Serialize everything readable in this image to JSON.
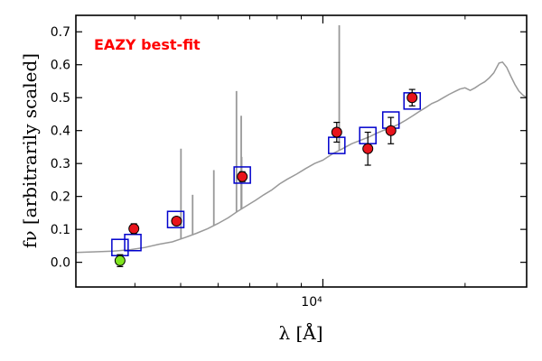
{
  "chart_data": {
    "type": "scatter",
    "title": "",
    "annotation": "EAZY best-fit",
    "annotation_color": "#ff0000",
    "xlabel": "λ [Å]",
    "ylabel": "fν [arbitrarily scaled]",
    "x_scale": "log",
    "xlim": [
      3000,
      27000
    ],
    "ylim": [
      -0.075,
      0.75
    ],
    "x_tick_label": "10⁴",
    "y_ticks": [
      "0.0",
      "0.1",
      "0.2",
      "0.3",
      "0.4",
      "0.5",
      "0.6",
      "0.7"
    ],
    "y_tick_values": [
      0.0,
      0.1,
      0.2,
      0.3,
      0.4,
      0.5,
      0.6,
      0.7
    ],
    "grid": false,
    "series": [
      {
        "kind": "line",
        "color": "#999999",
        "x": [
          3000,
          3300,
          3600,
          3900,
          4200,
          4500,
          4800,
          5100,
          5400,
          5700,
          6000,
          6300,
          6600,
          6900,
          7200,
          7500,
          7800,
          8100,
          8400,
          8800,
          9200,
          9600,
          10000,
          10500,
          11000,
          11500,
          12000,
          12500,
          13000,
          13500,
          14000,
          14500,
          15000,
          15500,
          16000,
          16500,
          17000,
          17500,
          18000,
          18500,
          19000,
          19500,
          20000,
          20500,
          21000,
          21500,
          22000,
          22500,
          23000,
          23300,
          23600,
          24000,
          24500,
          25000,
          25500,
          26000,
          26500,
          27000
        ],
        "y": [
          0.03,
          0.032,
          0.034,
          0.038,
          0.045,
          0.055,
          0.062,
          0.075,
          0.088,
          0.102,
          0.118,
          0.135,
          0.155,
          0.172,
          0.188,
          0.205,
          0.22,
          0.238,
          0.252,
          0.268,
          0.285,
          0.3,
          0.31,
          0.33,
          0.345,
          0.36,
          0.37,
          0.38,
          0.392,
          0.402,
          0.41,
          0.42,
          0.432,
          0.445,
          0.458,
          0.47,
          0.482,
          0.49,
          0.5,
          0.51,
          0.518,
          0.526,
          0.53,
          0.522,
          0.53,
          0.54,
          0.548,
          0.56,
          0.575,
          0.59,
          0.605,
          0.608,
          0.592,
          0.565,
          0.54,
          0.52,
          0.508,
          0.5
        ]
      },
      {
        "kind": "emission_lines",
        "color": "#999999",
        "x": [
          5007,
          5300,
          5877,
          6563,
          6716,
          6731,
          10830
        ],
        "y_top": [
          0.345,
          0.205,
          0.28,
          0.52,
          0.445,
          0.32,
          0.72
        ]
      },
      {
        "kind": "model_photometry",
        "marker": "open_square",
        "color": "#0000cc",
        "x": [
          3720,
          3960,
          4880,
          6750,
          10700,
          12450,
          13930,
          15450
        ],
        "y": [
          0.045,
          0.06,
          0.13,
          0.265,
          0.355,
          0.385,
          0.432,
          0.49
        ]
      },
      {
        "kind": "observed_photometry",
        "marker": "circle",
        "color": "#e8141c",
        "x": [
          3980,
          4900,
          6750,
          10700,
          12450,
          13930,
          15450
        ],
        "y": [
          0.102,
          0.125,
          0.26,
          0.395,
          0.345,
          0.4,
          0.5
        ],
        "yerr": [
          0.015,
          0.012,
          0.015,
          0.03,
          0.05,
          0.04,
          0.025
        ]
      },
      {
        "kind": "observed_photometry_low",
        "marker": "circle",
        "color": "#7fe51e",
        "x": [
          3720
        ],
        "y": [
          0.005
        ],
        "yerr": [
          0.018
        ]
      }
    ]
  }
}
